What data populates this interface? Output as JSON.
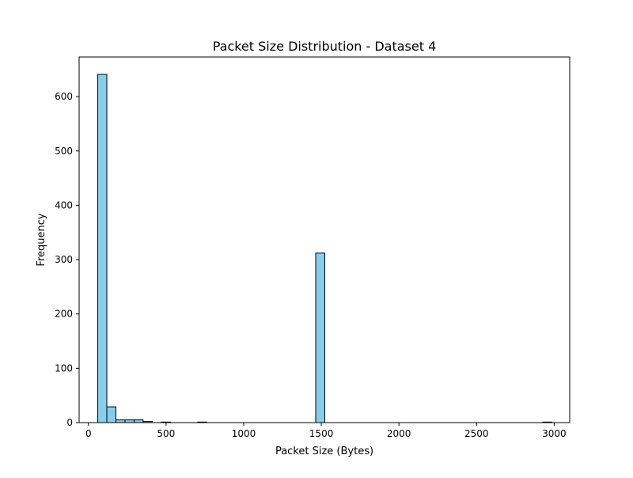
{
  "chart_data": {
    "type": "bar",
    "title": "Packet Size Distribution - Dataset 4",
    "xlabel": "Packet Size (Bytes)",
    "ylabel": "Frequency",
    "xlim": [
      -60,
      3100
    ],
    "ylim": [
      0,
      673
    ],
    "xticks": [
      0,
      500,
      1000,
      1500,
      2000,
      2500,
      3000
    ],
    "yticks": [
      0,
      100,
      200,
      300,
      400,
      500,
      600
    ],
    "grid": false,
    "bar_color": "#87ceeb",
    "edge_color": "#000000",
    "bins": [
      {
        "x0": 60,
        "x1": 118.5,
        "value": 641
      },
      {
        "x0": 118.5,
        "x1": 177,
        "value": 29
      },
      {
        "x0": 177,
        "x1": 235.5,
        "value": 5
      },
      {
        "x0": 235.5,
        "x1": 294,
        "value": 5
      },
      {
        "x0": 294,
        "x1": 352.5,
        "value": 5
      },
      {
        "x0": 352.5,
        "x1": 411,
        "value": 2
      },
      {
        "x0": 469.5,
        "x1": 528,
        "value": 1
      },
      {
        "x0": 703.5,
        "x1": 762,
        "value": 1
      },
      {
        "x0": 1464,
        "x1": 1522.5,
        "value": 312
      },
      {
        "x0": 2926.5,
        "x1": 2985,
        "value": 1
      }
    ]
  }
}
